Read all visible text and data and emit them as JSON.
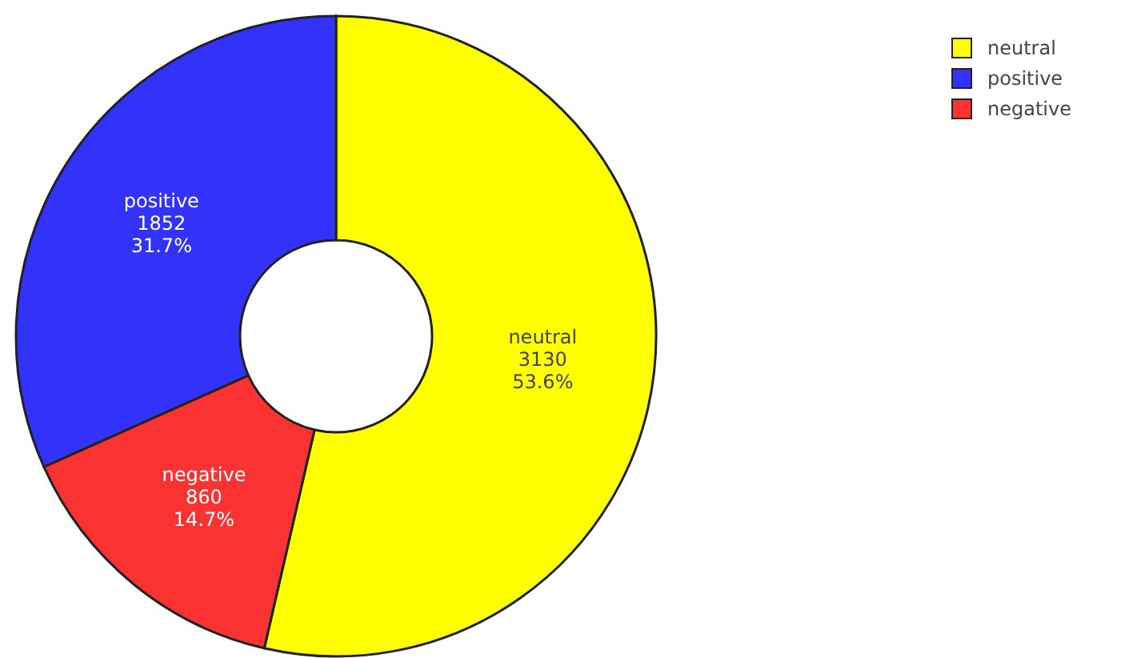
{
  "chart_data": {
    "type": "donut",
    "categories": [
      "neutral",
      "positive",
      "negative"
    ],
    "values": [
      53.6,
      31.7,
      14.7
    ],
    "colors": [
      "#ffff00",
      "#3232fa",
      "#fa3232"
    ],
    "value_labels": [
      "3130\n53.6%",
      "1852\n31.7%",
      "860\n14.7%"
    ],
    "legend": "top right"
  }
}
